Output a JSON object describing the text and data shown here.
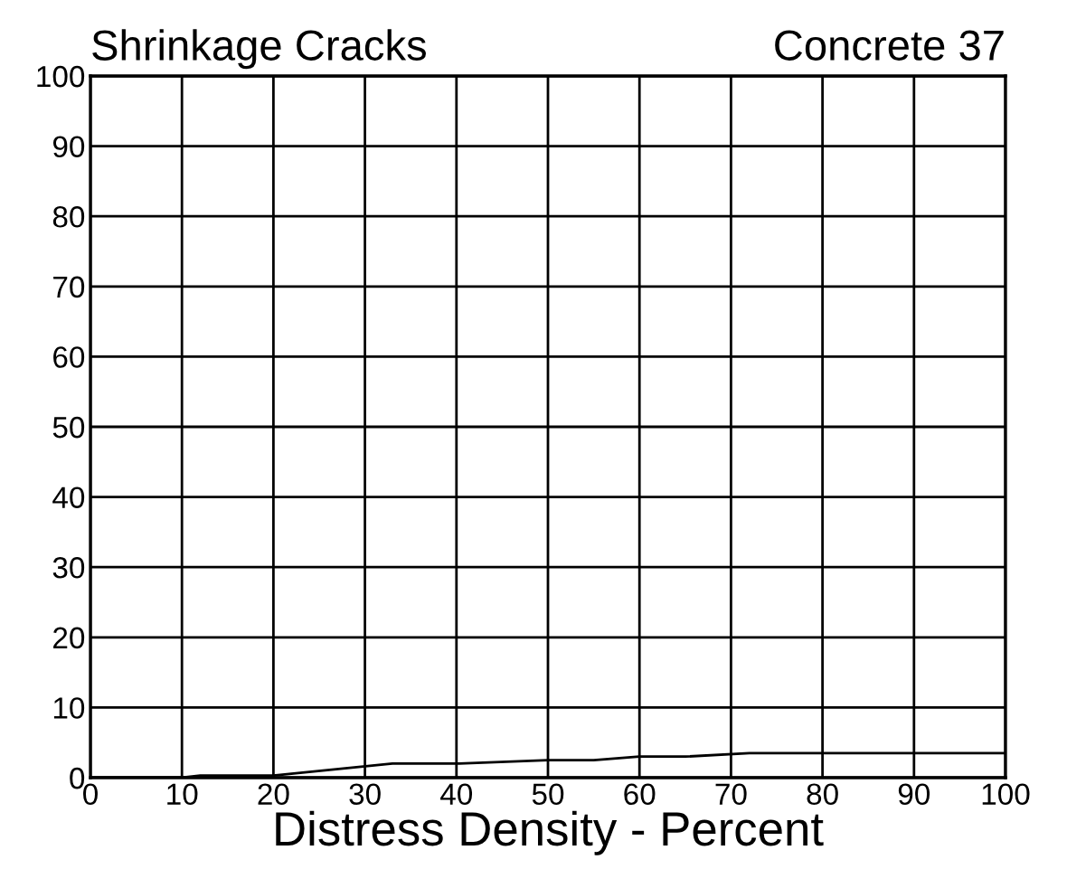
{
  "chart_data": {
    "type": "line",
    "title": "Shrinkage Cracks",
    "subtitle": "Concrete 37",
    "xlabel": "Distress Density - Percent",
    "series": [
      {
        "color": "#000000",
        "x": [
          0,
          10,
          12,
          20,
          33,
          40,
          50,
          55,
          60,
          65,
          72,
          80,
          100
        ],
        "values": [
          0,
          0,
          0.3,
          0.3,
          2,
          2,
          2.5,
          2.5,
          3,
          3,
          3.5,
          3.5,
          3.5
        ]
      }
    ],
    "xlim": [
      0,
      100
    ],
    "ylim": [
      0,
      100
    ],
    "xticks": [
      0,
      10,
      20,
      30,
      40,
      50,
      60,
      70,
      80,
      90,
      100
    ],
    "yticks": [
      0,
      10,
      20,
      30,
      40,
      50,
      60,
      70,
      80,
      90,
      100
    ],
    "grid": true,
    "legend": false,
    "marker": "none",
    "line_style": "solid"
  }
}
